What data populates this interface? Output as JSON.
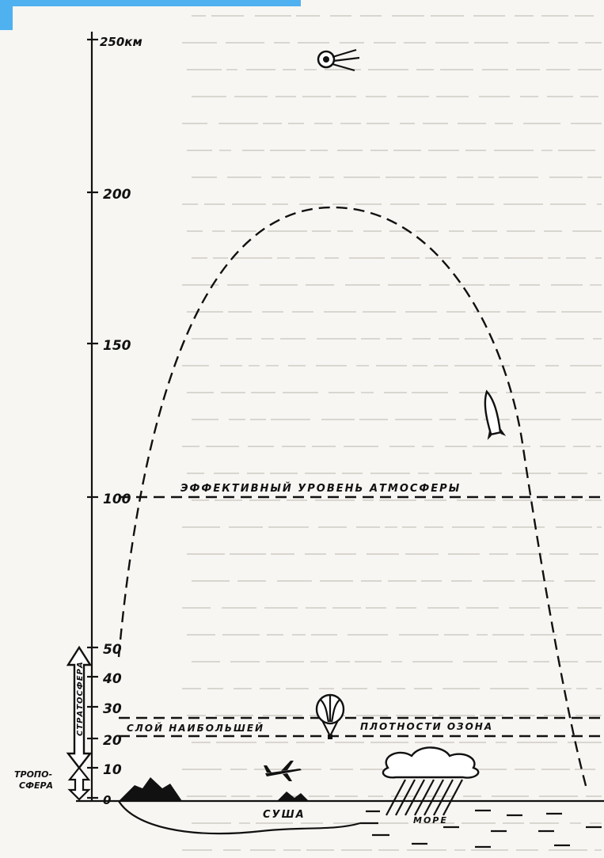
{
  "axis": {
    "top_label": "250км",
    "ticks": [
      "200",
      "150",
      "100",
      "50",
      "40",
      "30",
      "20",
      "10",
      "0"
    ]
  },
  "labels": {
    "effective_level": "ЭФФЕКТИВНЫЙ УРОВЕНЬ АТМОСФЕРЫ",
    "ozone_left": "СЛОЙ НАИБОЛЬШЕЙ",
    "ozone_right": "ПЛОТНОСТИ ОЗОНА",
    "troposphere": "ТРОПО-\nСФЕРА",
    "stratosphere": "СТРАТОСФЕРА",
    "land": "СУША",
    "sea": "МОРЕ"
  },
  "icons": {
    "satellite": "satellite-icon",
    "rocket": "rocket-icon",
    "balloon": "balloon-icon",
    "airplane": "airplane-icon",
    "cloud": "rain-cloud-icon"
  },
  "colors": {
    "accent": "#4fb1f0",
    "ink": "#111111"
  }
}
